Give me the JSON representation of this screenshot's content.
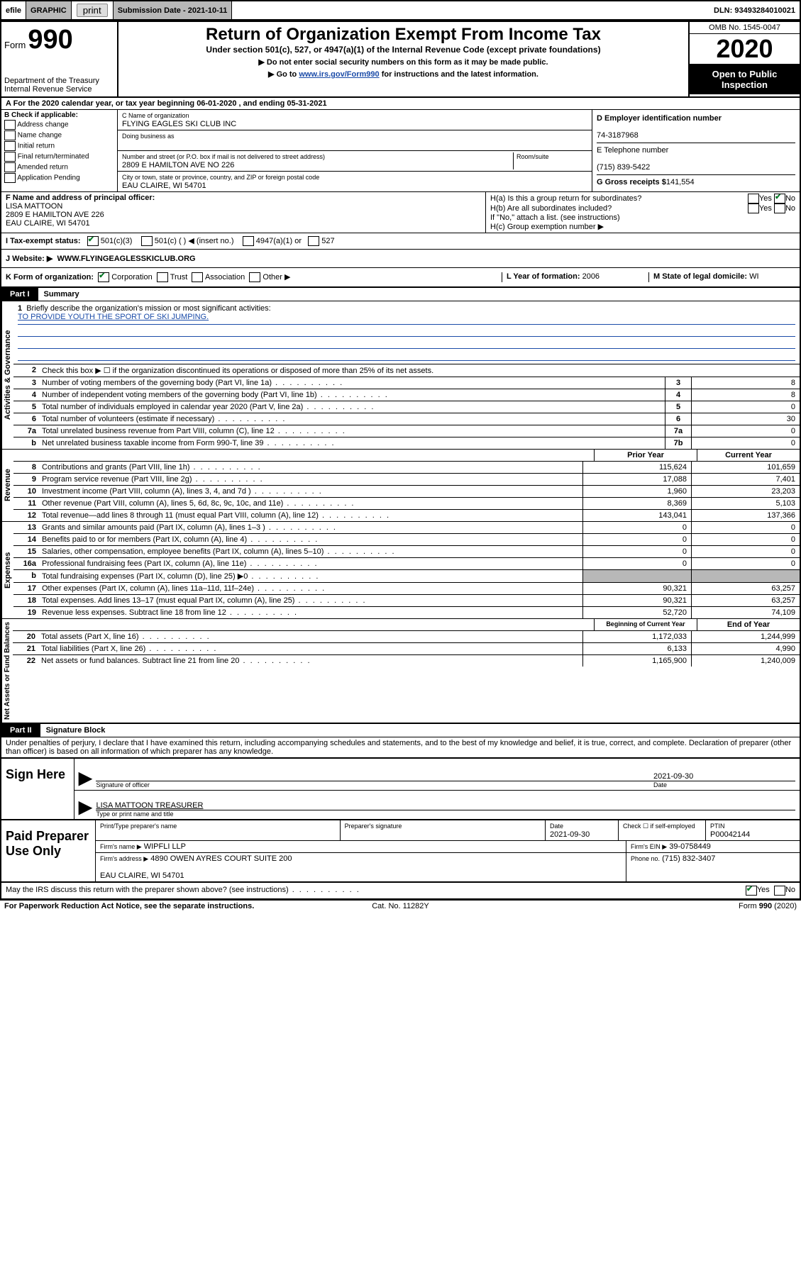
{
  "topbar": {
    "efile": "efile",
    "graphic": "GRAPHIC",
    "print": "print",
    "submission_label": "Submission Date -",
    "submission_date": "2021-10-11",
    "dln_label": "DLN:",
    "dln": "93493284010021"
  },
  "header": {
    "form_label": "Form",
    "form_number": "990",
    "dept1": "Department of the Treasury",
    "dept2": "Internal Revenue Service",
    "title": "Return of Organization Exempt From Income Tax",
    "subtitle": "Under section 501(c), 527, or 4947(a)(1) of the Internal Revenue Code (except private foundations)",
    "note1": "▶ Do not enter social security numbers on this form as it may be made public.",
    "note2_pre": "▶ Go to ",
    "note2_link": "www.irs.gov/Form990",
    "note2_post": " for instructions and the latest information.",
    "omb": "OMB No. 1545-0047",
    "year": "2020",
    "inspection": "Open to Public Inspection"
  },
  "row_a": "A For the 2020 calendar year, or tax year beginning 06-01-2020   , and ending 05-31-2021",
  "section_b": {
    "label": "B Check if applicable:",
    "opts": [
      "Address change",
      "Name change",
      "Initial return",
      "Final return/terminated",
      "Amended return",
      "Application Pending"
    ]
  },
  "section_c": {
    "name_label": "C Name of organization",
    "name": "FLYING EAGLES SKI CLUB INC",
    "dba_label": "Doing business as",
    "street_label": "Number and street (or P.O. box if mail is not delivered to street address)",
    "room_label": "Room/suite",
    "street": "2809 E HAMILTON AVE NO 226",
    "city_label": "City or town, state or province, country, and ZIP or foreign postal code",
    "city": "EAU CLAIRE, WI  54701"
  },
  "section_d": {
    "ein_label": "D Employer identification number",
    "ein": "74-3187968",
    "phone_label": "E Telephone number",
    "phone": "(715) 839-5422",
    "gross_label": "G Gross receipts $",
    "gross": "141,554"
  },
  "section_f": {
    "label": "F  Name and address of principal officer:",
    "name": "LISA MATTOON",
    "addr1": "2809 E HAMILTON AVE 226",
    "addr2": "EAU CLAIRE, WI  54701"
  },
  "section_h": {
    "ha": "H(a)  Is this a group return for subordinates?",
    "hb": "H(b)  Are all subordinates included?",
    "hnote": "If \"No,\" attach a list. (see instructions)",
    "hc": "H(c)  Group exemption number ▶",
    "yes": "Yes",
    "no": "No"
  },
  "row_i": {
    "label": "I    Tax-exempt status:",
    "opts": [
      "501(c)(3)",
      "501(c) (  ) ◀ (insert no.)",
      "4947(a)(1) or",
      "527"
    ]
  },
  "row_j": {
    "label": "J    Website: ▶",
    "url": "WWW.FLYINGEAGLESSKICLUB.ORG"
  },
  "row_k": {
    "k_label": "K Form of organization:",
    "k_opts": [
      "Corporation",
      "Trust",
      "Association",
      "Other ▶"
    ],
    "l_label": "L Year of formation:",
    "l_val": "2006",
    "m_label": "M State of legal domicile:",
    "m_val": "WI"
  },
  "part1": {
    "label": "Part I",
    "title": "Summary"
  },
  "mission": {
    "num": "1",
    "label": "Briefly describe the organization's mission or most significant activities:",
    "text": "TO PROVIDE YOUTH THE SPORT OF SKI JUMPING."
  },
  "governance": {
    "vlabel": "Activities & Governance",
    "line2": "Check this box ▶ ☐  if the organization discontinued its operations or disposed of more than 25% of its net assets.",
    "lines": [
      {
        "n": "3",
        "t": "Number of voting members of the governing body (Part VI, line 1a)",
        "b": "3",
        "v": "8"
      },
      {
        "n": "4",
        "t": "Number of independent voting members of the governing body (Part VI, line 1b)",
        "b": "4",
        "v": "8"
      },
      {
        "n": "5",
        "t": "Total number of individuals employed in calendar year 2020 (Part V, line 2a)",
        "b": "5",
        "v": "0"
      },
      {
        "n": "6",
        "t": "Total number of volunteers (estimate if necessary)",
        "b": "6",
        "v": "30"
      },
      {
        "n": "7a",
        "t": "Total unrelated business revenue from Part VIII, column (C), line 12",
        "b": "7a",
        "v": "0"
      },
      {
        "n": " b",
        "t": "Net unrelated business taxable income from Form 990-T, line 39",
        "b": "7b",
        "v": "0"
      }
    ]
  },
  "revenue": {
    "vlabel": "Revenue",
    "col1": "Prior Year",
    "col2": "Current Year",
    "lines": [
      {
        "n": "8",
        "t": "Contributions and grants (Part VIII, line 1h)",
        "p": "115,624",
        "c": "101,659"
      },
      {
        "n": "9",
        "t": "Program service revenue (Part VIII, line 2g)",
        "p": "17,088",
        "c": "7,401"
      },
      {
        "n": "10",
        "t": "Investment income (Part VIII, column (A), lines 3, 4, and 7d )",
        "p": "1,960",
        "c": "23,203"
      },
      {
        "n": "11",
        "t": "Other revenue (Part VIII, column (A), lines 5, 6d, 8c, 9c, 10c, and 11e)",
        "p": "8,369",
        "c": "5,103"
      },
      {
        "n": "12",
        "t": "Total revenue—add lines 8 through 11 (must equal Part VIII, column (A), line 12)",
        "p": "143,041",
        "c": "137,366"
      }
    ]
  },
  "expenses": {
    "vlabel": "Expenses",
    "lines": [
      {
        "n": "13",
        "t": "Grants and similar amounts paid (Part IX, column (A), lines 1–3 )",
        "p": "0",
        "c": "0"
      },
      {
        "n": "14",
        "t": "Benefits paid to or for members (Part IX, column (A), line 4)",
        "p": "0",
        "c": "0"
      },
      {
        "n": "15",
        "t": "Salaries, other compensation, employee benefits (Part IX, column (A), lines 5–10)",
        "p": "0",
        "c": "0"
      },
      {
        "n": "16a",
        "t": "Professional fundraising fees (Part IX, column (A), line 11e)",
        "p": "0",
        "c": "0"
      },
      {
        "n": "b",
        "t": "Total fundraising expenses (Part IX, column (D), line 25) ▶0",
        "p": "",
        "c": "",
        "shaded": true
      },
      {
        "n": "17",
        "t": "Other expenses (Part IX, column (A), lines 11a–11d, 11f–24e)",
        "p": "90,321",
        "c": "63,257"
      },
      {
        "n": "18",
        "t": "Total expenses. Add lines 13–17 (must equal Part IX, column (A), line 25)",
        "p": "90,321",
        "c": "63,257"
      },
      {
        "n": "19",
        "t": "Revenue less expenses. Subtract line 18 from line 12",
        "p": "52,720",
        "c": "74,109"
      }
    ]
  },
  "netassets": {
    "vlabel": "Net Assets or Fund Balances",
    "col1": "Beginning of Current Year",
    "col2": "End of Year",
    "lines": [
      {
        "n": "20",
        "t": "Total assets (Part X, line 16)",
        "p": "1,172,033",
        "c": "1,244,999"
      },
      {
        "n": "21",
        "t": "Total liabilities (Part X, line 26)",
        "p": "6,133",
        "c": "4,990"
      },
      {
        "n": "22",
        "t": "Net assets or fund balances. Subtract line 21 from line 20",
        "p": "1,165,900",
        "c": "1,240,009"
      }
    ]
  },
  "part2": {
    "label": "Part II",
    "title": "Signature Block",
    "perjury": "Under penalties of perjury, I declare that I have examined this return, including accompanying schedules and statements, and to the best of my knowledge and belief, it is true, correct, and complete. Declaration of preparer (other than officer) is based on all information of which preparer has any knowledge."
  },
  "sign": {
    "label": "Sign Here",
    "sig_officer": "Signature of officer",
    "date_label": "Date",
    "date": "2021-09-30",
    "name_title": "LISA MATTOON  TREASURER",
    "type_label": "Type or print name and title"
  },
  "preparer": {
    "label": "Paid Preparer Use Only",
    "h1": "Print/Type preparer's name",
    "h2": "Preparer's signature",
    "h3_label": "Date",
    "h3": "2021-09-30",
    "h4_label": "Check ☐ if self-employed",
    "h5_label": "PTIN",
    "h5": "P00042144",
    "firm_name_label": "Firm's name    ▶",
    "firm_name": "WIPFLI LLP",
    "firm_ein_label": "Firm's EIN ▶",
    "firm_ein": "39-0758449",
    "firm_addr_label": "Firm's address ▶",
    "firm_addr1": "4890 OWEN AYRES COURT SUITE 200",
    "firm_addr2": "EAU CLAIRE, WI  54701",
    "phone_label": "Phone no.",
    "phone": "(715) 832-3407"
  },
  "discuss": {
    "text": "May the IRS discuss this return with the preparer shown above? (see instructions)",
    "yes": "Yes",
    "no": "No"
  },
  "footer": {
    "left": "For Paperwork Reduction Act Notice, see the separate instructions.",
    "mid": "Cat. No. 11282Y",
    "right_pre": "Form ",
    "right_bold": "990",
    "right_post": " (2020)"
  }
}
